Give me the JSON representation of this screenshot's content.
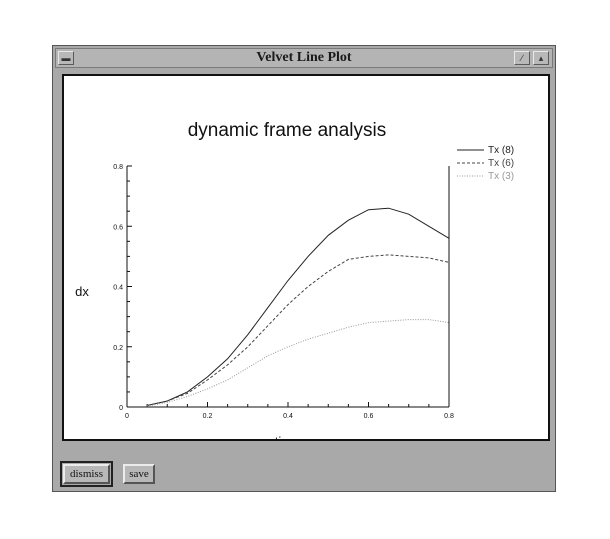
{
  "window": {
    "title": "Velvet Line Plot"
  },
  "buttons": {
    "dismiss": "dismiss",
    "save": "save"
  },
  "chart_data": {
    "type": "line",
    "title": "dynamic frame analysis",
    "xlabel": "time",
    "ylabel": "dx",
    "xlim": [
      0,
      0.8
    ],
    "ylim": [
      0,
      0.8
    ],
    "xticks": [
      "0",
      "0.2",
      "0.4",
      "0.6",
      "0.8"
    ],
    "yticks": [
      "0",
      "0.2",
      "0.4",
      "0.6",
      "0.8"
    ],
    "legend_position": "top-right",
    "series": [
      {
        "name": "Tx (8)",
        "color": "#222222",
        "style": "solid",
        "x": [
          0.05,
          0.1,
          0.15,
          0.2,
          0.25,
          0.3,
          0.35,
          0.4,
          0.45,
          0.5,
          0.55,
          0.6,
          0.65,
          0.7,
          0.75,
          0.8
        ],
        "y": [
          0.005,
          0.02,
          0.05,
          0.1,
          0.16,
          0.24,
          0.33,
          0.42,
          0.5,
          0.57,
          0.62,
          0.655,
          0.66,
          0.64,
          0.6,
          0.56
        ]
      },
      {
        "name": "Tx (6)",
        "color": "#444444",
        "style": "dashed",
        "x": [
          0.05,
          0.1,
          0.15,
          0.2,
          0.25,
          0.3,
          0.35,
          0.4,
          0.45,
          0.5,
          0.55,
          0.6,
          0.65,
          0.7,
          0.75,
          0.8
        ],
        "y": [
          0.005,
          0.02,
          0.045,
          0.09,
          0.14,
          0.2,
          0.27,
          0.34,
          0.4,
          0.45,
          0.49,
          0.5,
          0.505,
          0.5,
          0.495,
          0.48
        ]
      },
      {
        "name": "Tx (3)",
        "color": "#999999",
        "style": "dotted",
        "x": [
          0.05,
          0.1,
          0.15,
          0.2,
          0.25,
          0.3,
          0.35,
          0.4,
          0.45,
          0.5,
          0.55,
          0.6,
          0.65,
          0.7,
          0.75,
          0.8
        ],
        "y": [
          0.003,
          0.015,
          0.035,
          0.06,
          0.09,
          0.13,
          0.17,
          0.2,
          0.225,
          0.245,
          0.265,
          0.28,
          0.285,
          0.29,
          0.29,
          0.28
        ]
      }
    ]
  }
}
